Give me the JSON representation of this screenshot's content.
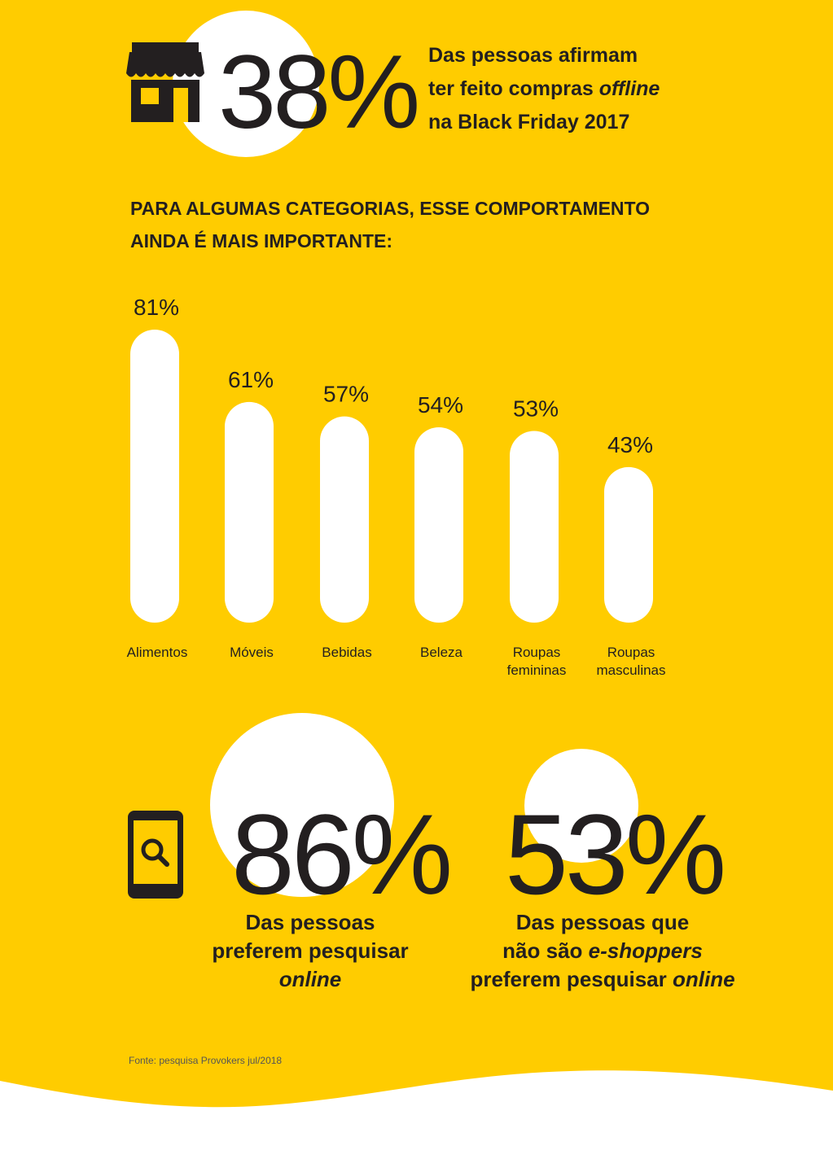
{
  "stat_top": {
    "value": "38%",
    "lines": [
      [
        {
          "t": "Das pessoas afirmam",
          "i": false
        }
      ],
      [
        {
          "t": "ter feito compras ",
          "i": false
        },
        {
          "t": "offline",
          "i": true
        }
      ],
      [
        {
          "t": "na Black Friday 2017",
          "i": false
        }
      ]
    ]
  },
  "heading": {
    "line1": "PARA ALGUMAS CATEGORIAS, ESSE COMPORTAMENTO",
    "line2": "AINDA É MAIS IMPORTANTE:"
  },
  "chart_data": {
    "type": "bar",
    "categories": [
      [
        "Alimentos"
      ],
      [
        "Móveis"
      ],
      [
        "Bebidas"
      ],
      [
        "Beleza"
      ],
      [
        "Roupas",
        "femininas"
      ],
      [
        "Roupas",
        "masculinas"
      ]
    ],
    "values": [
      81,
      61,
      57,
      54,
      53,
      43
    ],
    "value_labels": [
      "81%",
      "61%",
      "57%",
      "54%",
      "53%",
      "43%"
    ],
    "bar_color": "#ffffff"
  },
  "stat_left": {
    "value": "86%",
    "lines": [
      [
        {
          "t": "Das pessoas",
          "i": false
        }
      ],
      [
        {
          "t": "preferem pesquisar",
          "i": false
        }
      ],
      [
        {
          "t": "online",
          "i": true
        }
      ]
    ]
  },
  "stat_right": {
    "value": "53%",
    "lines": [
      [
        {
          "t": "Das pessoas que",
          "i": false
        }
      ],
      [
        {
          "t": "não são ",
          "i": false
        },
        {
          "t": "e-shoppers",
          "i": true
        }
      ],
      [
        {
          "t": "preferem pesquisar ",
          "i": false
        },
        {
          "t": "online",
          "i": true
        }
      ]
    ]
  },
  "source": "Fonte: pesquisa Provokers jul/2018",
  "icons": {
    "store": "storefront-icon",
    "phone": "phone-search-icon"
  },
  "colors": {
    "background": "#FFCC00",
    "text": "#231f20",
    "accent": "#ffffff"
  }
}
